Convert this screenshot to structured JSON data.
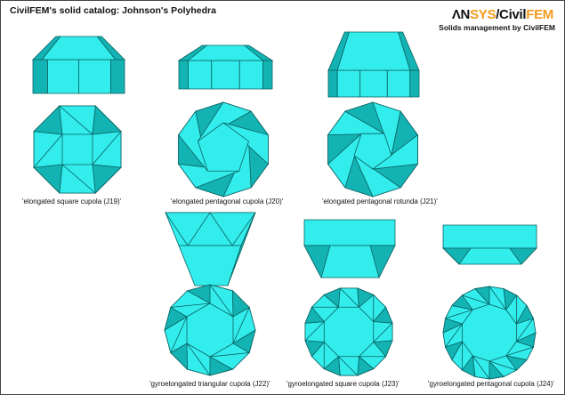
{
  "header": {
    "title": "CivilFEM's solid catalog: Johnson's Polyhedra",
    "logo_part1": "ΛN",
    "logo_part2": "SYS",
    "logo_part3": "/Civil",
    "logo_part4": "FEM",
    "subtitle": "Solids management by CivilFEM"
  },
  "colors": {
    "face_light": "#33eded",
    "face_dark": "#14b3b3",
    "edge": "#0b6161",
    "logo_accent": "#f39a1e"
  },
  "solids": [
    {
      "caption": "'elongated square cupola (J19)'"
    },
    {
      "caption": "'elongated pentagonal cupola (J20)'"
    },
    {
      "caption": "'elongated pentagonal rotunda (J21)'"
    },
    {
      "caption": "'gyroelongated triangular cupola (J22)'"
    },
    {
      "caption": "'gyroelongated square cupola (J23)'"
    },
    {
      "caption": "'gyroelongated pentagonal cupola (J24)'"
    }
  ]
}
